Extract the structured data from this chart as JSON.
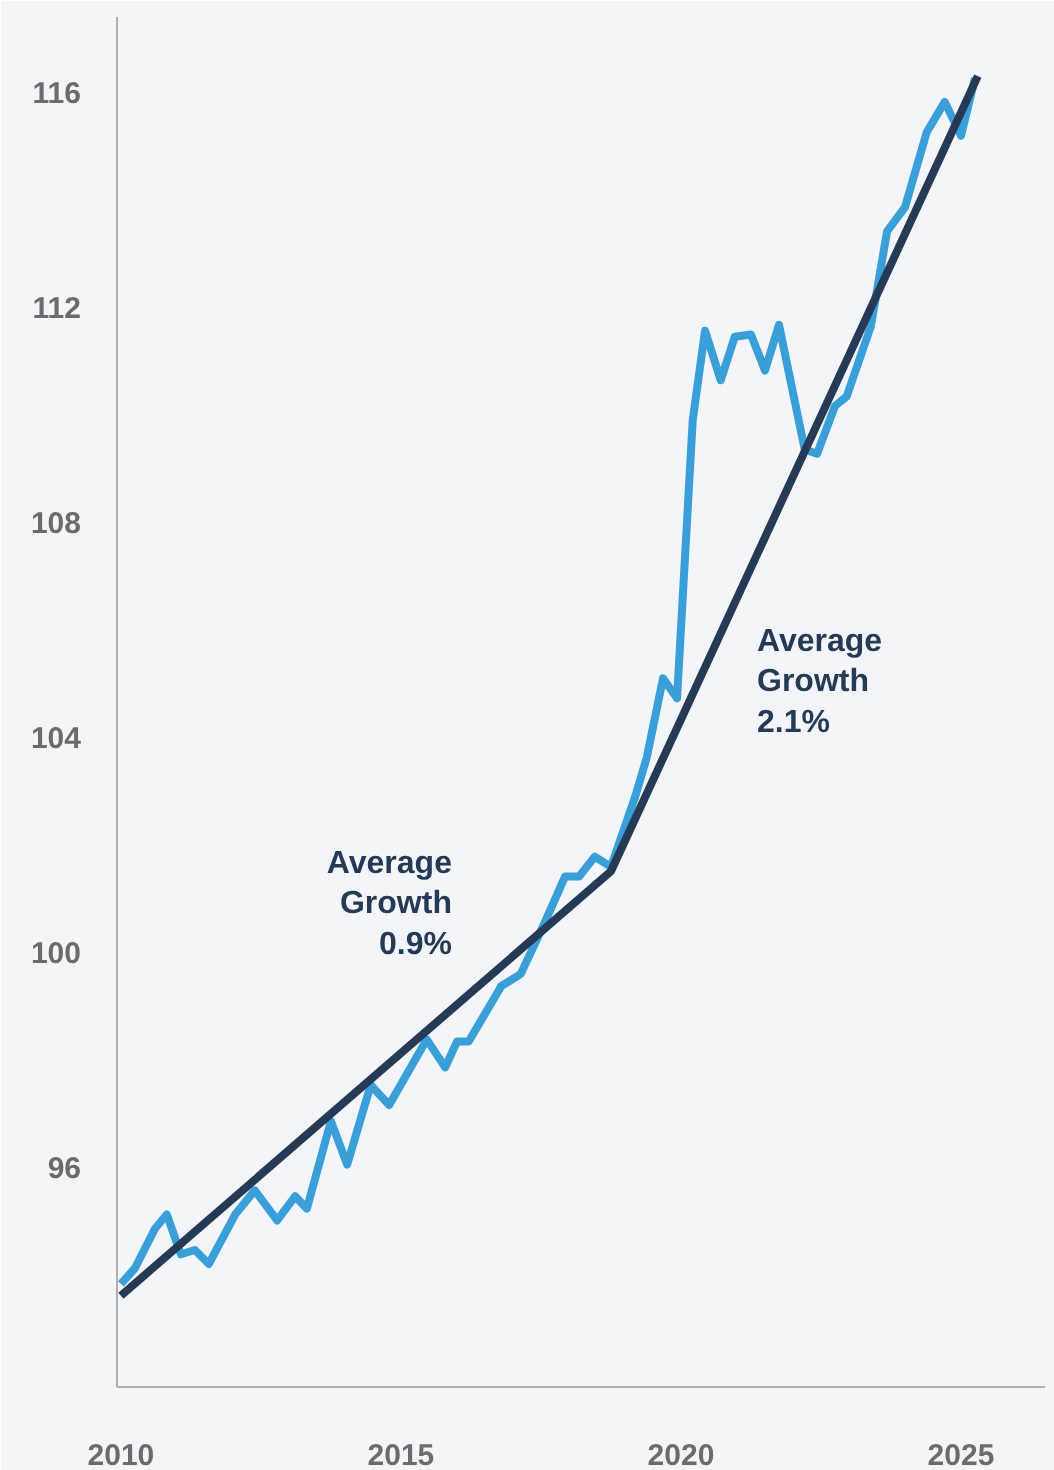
{
  "chart_data": {
    "type": "line",
    "xlim": [
      2009.93,
      2026.5
    ],
    "ylim": [
      91.9,
      117.4
    ],
    "xticks": [
      2010,
      2015,
      2020,
      2025
    ],
    "yticks": [
      96,
      100,
      104,
      108,
      112,
      116
    ],
    "grid": false,
    "marker": "none",
    "line_style": "solid",
    "series": [
      {
        "color": "#3a9fd8",
        "x": [
          2010.0,
          2010.25,
          2010.61,
          2010.82,
          2011.07,
          2011.32,
          2011.57,
          2012.04,
          2012.39,
          2012.79,
          2013.11,
          2013.32,
          2013.75,
          2014.04,
          2014.46,
          2014.79,
          2015.46,
          2015.79,
          2016.0,
          2016.21,
          2016.79,
          2017.14,
          2017.57,
          2017.93,
          2018.18,
          2018.46,
          2018.75,
          2019.18,
          2019.39,
          2019.68,
          2019.93,
          2020.21,
          2020.43,
          2020.71,
          2020.96,
          2021.25,
          2021.5,
          2021.75,
          2022.21,
          2022.43,
          2022.75,
          2022.96,
          2023.39,
          2023.68,
          2024.0,
          2024.39,
          2024.71,
          2025.0,
          2025.25
        ],
        "values": [
          93.82,
          94.11,
          94.85,
          95.11,
          94.37,
          94.45,
          94.19,
          95.11,
          95.56,
          95.0,
          95.45,
          95.22,
          96.85,
          96.04,
          97.52,
          97.15,
          98.37,
          97.85,
          98.33,
          98.33,
          99.36,
          99.59,
          100.55,
          101.4,
          101.4,
          101.77,
          101.58,
          102.88,
          103.62,
          105.09,
          104.72,
          109.9,
          111.56,
          110.64,
          111.45,
          111.49,
          110.82,
          111.67,
          109.35,
          109.27,
          110.16,
          110.34,
          111.64,
          113.41,
          113.86,
          115.26,
          115.82,
          115.19,
          116.26
        ]
      },
      {
        "color": "#263a55",
        "x": [
          2010.0,
          2018.75,
          2025.3
        ],
        "values": [
          93.6,
          101.5,
          116.3
        ]
      }
    ],
    "annotations": [
      "Average\nGrowth\n0.9%",
      "Average\nGrowth\n2.1%"
    ]
  }
}
